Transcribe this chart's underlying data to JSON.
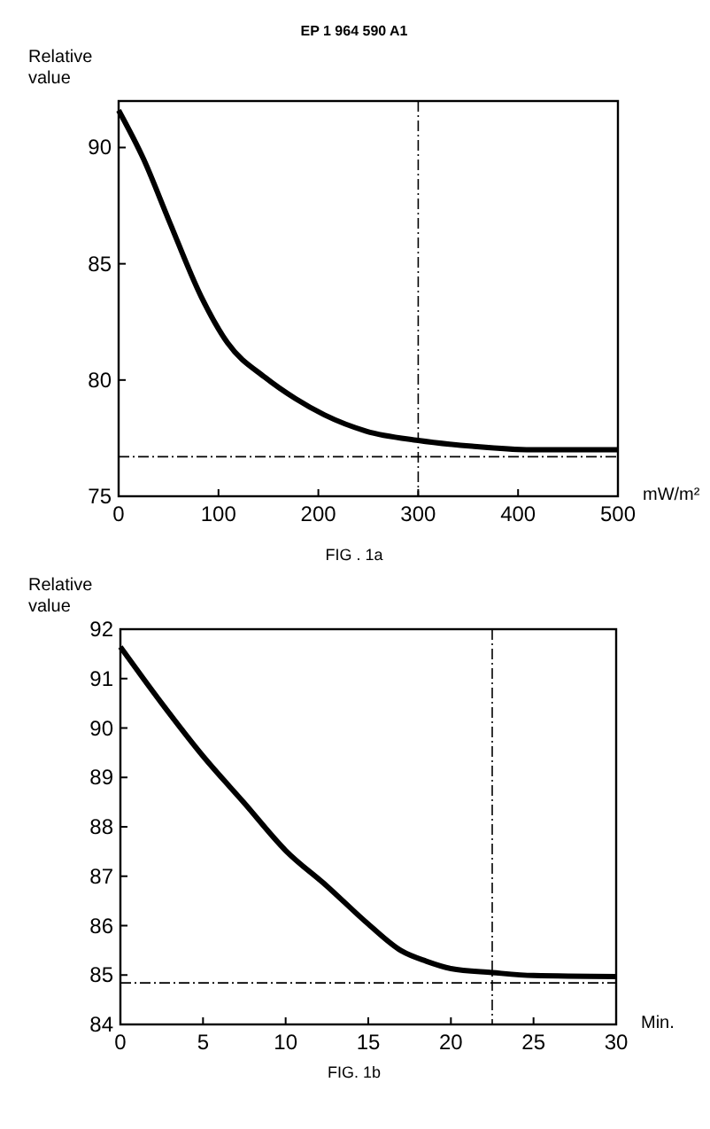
{
  "chart_data": [
    {
      "type": "line",
      "title": "EP 1 964 590 A1",
      "xlabel": "mW/m²",
      "ylabel": "Relative value",
      "annotations": [
        "FIG . 1a"
      ],
      "x": [
        0,
        25,
        50,
        82.5,
        109,
        147,
        177,
        206,
        248,
        300,
        354,
        413,
        500
      ],
      "series": [
        {
          "color": "#000000",
          "values": [
            91.6,
            89.5,
            86.9,
            83.6,
            81.6,
            80.1,
            79.2,
            78.5,
            77.8,
            77.4,
            77.15,
            77.0,
            77.0
          ]
        }
      ],
      "xlim": [
        0,
        500
      ],
      "xticks": [
        0,
        100,
        200,
        300,
        400,
        500
      ],
      "ylim": [
        75,
        92
      ],
      "yticks": [
        75,
        80,
        85,
        90
      ],
      "ref_lines": [
        {
          "axis": "x",
          "value": 300,
          "line_style": "dashed"
        },
        {
          "axis": "y",
          "value": 76.7,
          "line_style": "dashed"
        }
      ],
      "grid": false
    },
    {
      "type": "line",
      "xlabel": "Min.",
      "ylabel": "Relative value",
      "annotations": [
        "FIG. 1b"
      ],
      "x": [
        0,
        2.5,
        5,
        7.5,
        10,
        12.5,
        15,
        17,
        18.5,
        20,
        22.5,
        25,
        30
      ],
      "series": [
        {
          "color": "#000000",
          "values": [
            91.64,
            90.5,
            89.43,
            88.48,
            87.52,
            86.8,
            86.03,
            85.49,
            85.28,
            85.13,
            85.05,
            84.99,
            84.97
          ]
        }
      ],
      "xlim": [
        0,
        30
      ],
      "xticks": [
        0,
        5,
        10,
        15,
        20,
        25,
        30
      ],
      "ylim": [
        84,
        92
      ],
      "yticks": [
        84,
        85,
        86,
        87,
        88,
        89,
        90,
        91,
        92
      ],
      "ref_lines": [
        {
          "axis": "x",
          "value": 22.5,
          "line_style": "dashed"
        },
        {
          "axis": "y",
          "value": 84.84,
          "line_style": "dashed"
        }
      ],
      "grid": false
    }
  ]
}
